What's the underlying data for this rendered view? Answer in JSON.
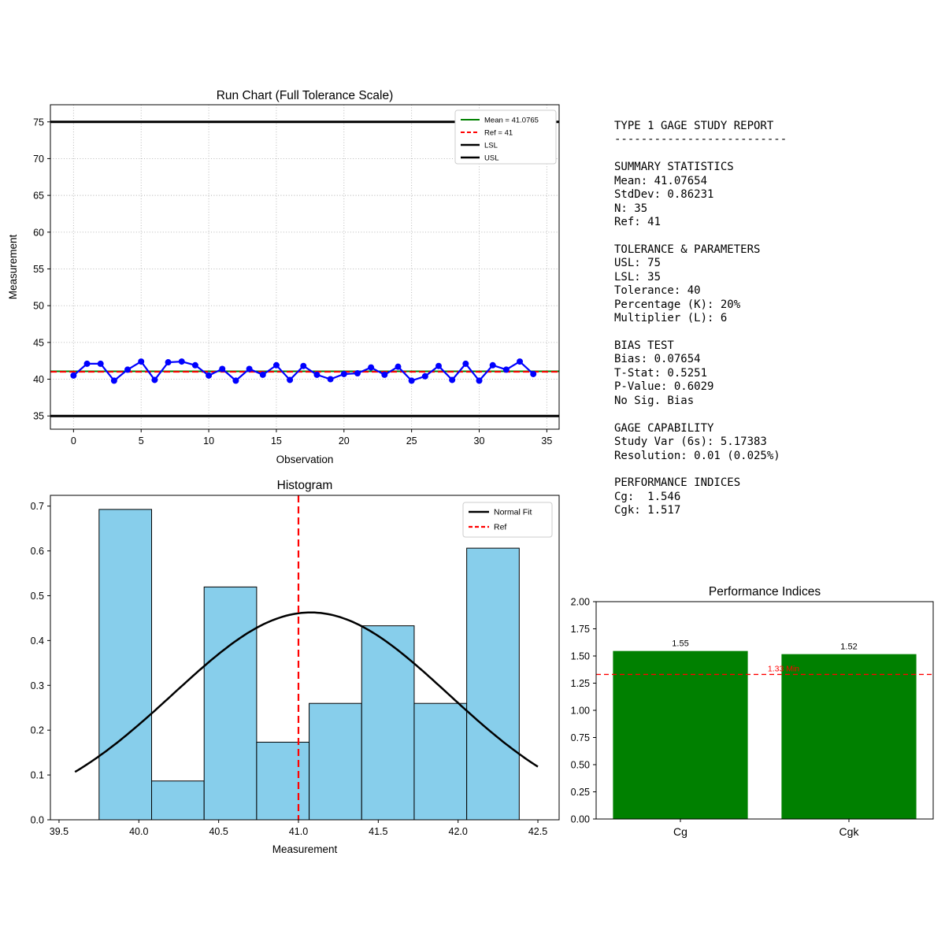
{
  "report": {
    "title": "TYPE 1 GAGE STUDY REPORT",
    "divider": "--------------------------",
    "sections": [
      {
        "heading": "SUMMARY STATISTICS",
        "lines": [
          "Mean: 41.07654",
          "StdDev: 0.86231",
          "N: 35",
          "Ref: 41"
        ]
      },
      {
        "heading": "TOLERANCE & PARAMETERS",
        "lines": [
          "USL: 75",
          "LSL: 35",
          "Tolerance: 40",
          "Percentage (K): 20%",
          "Multiplier (L): 6"
        ]
      },
      {
        "heading": "BIAS TEST",
        "lines": [
          "Bias: 0.07654",
          "T-Stat: 0.5251",
          "P-Value: 0.6029",
          "No Sig. Bias"
        ]
      },
      {
        "heading": "GAGE CAPABILITY",
        "lines": [
          "Study Var (6s): 5.17383",
          "Resolution: 0.01 (0.025%)"
        ]
      },
      {
        "heading": "PERFORMANCE INDICES",
        "lines": [
          "Cg:  1.546",
          "Cgk: 1.517"
        ]
      }
    ]
  },
  "chart_data": [
    {
      "id": "run_chart",
      "type": "line",
      "title": "Run Chart (Full Tolerance Scale)",
      "xlabel": "Observation",
      "ylabel": "Measurement",
      "xlim": [
        -1.71,
        35.91
      ],
      "ylim": [
        33.2,
        77.33
      ],
      "xticks": {
        "values": [
          0,
          5,
          10,
          15,
          20,
          25,
          30,
          35
        ],
        "labels": [
          "0",
          "5",
          "10",
          "15",
          "20",
          "25",
          "30",
          "35"
        ]
      },
      "yticks": {
        "values": [
          35,
          40,
          45,
          50,
          55,
          60,
          65,
          70,
          75
        ],
        "labels": [
          "35",
          "40",
          "45",
          "50",
          "55",
          "60",
          "65",
          "70",
          "75"
        ]
      },
      "grid": true,
      "series_color": "#0000ff",
      "values": [
        40.5,
        42.1,
        42.1,
        39.8,
        41.3,
        42.4,
        39.9,
        42.3,
        42.4,
        41.9,
        40.5,
        41.4,
        39.8,
        41.4,
        40.6,
        41.9,
        39.9,
        41.8,
        40.6,
        40.0,
        40.7,
        40.8,
        41.6,
        40.6,
        41.7,
        39.8,
        40.4,
        41.8,
        39.9,
        42.1,
        39.8,
        41.9,
        41.3,
        42.4,
        40.7
      ],
      "ref_lines": {
        "mean": {
          "value": 41.0765,
          "color": "#008000"
        },
        "ref": {
          "value": 41,
          "color": "#ff0000",
          "dashed": true
        },
        "lsl": {
          "value": 35,
          "color": "#000000"
        },
        "usl": {
          "value": 75,
          "color": "#000000"
        }
      },
      "legend": [
        {
          "label": "Mean = 41.0765",
          "color": "#008000",
          "dash": false,
          "width": 2
        },
        {
          "label": "Ref = 41",
          "color": "#ff0000",
          "dash": true,
          "width": 2
        },
        {
          "label": "LSL",
          "color": "#000000",
          "dash": false,
          "width": 2.5
        },
        {
          "label": "USL",
          "color": "#000000",
          "dash": false,
          "width": 2.5
        }
      ],
      "legend_position": "top-right"
    },
    {
      "id": "histogram",
      "type": "histogram",
      "title": "Histogram",
      "xlabel": "Measurement",
      "bin_edges": [
        39.751,
        40.08,
        40.409,
        40.738,
        41.067,
        41.396,
        41.725,
        42.054,
        42.383
      ],
      "densities": [
        0.6926,
        0.0866,
        0.5195,
        0.1732,
        0.2597,
        0.4329,
        0.2597,
        0.6061
      ],
      "counts": [
        8,
        1,
        6,
        2,
        3,
        5,
        3,
        7
      ],
      "bar_color": "#87CEEB",
      "bar_edge_color": "#000000",
      "normal_fit": {
        "mean": 41.07654,
        "std": 0.86231,
        "x_range": [
          39.6,
          42.51
        ],
        "color": "#000000"
      },
      "ref_line": {
        "value": 41,
        "color": "#ff0000",
        "dashed": true
      },
      "xlim": [
        39.446,
        42.633
      ],
      "ylim": [
        0,
        0.724
      ],
      "xticks": {
        "values": [
          39.5,
          40.0,
          40.5,
          41.0,
          41.5,
          42.0,
          42.5
        ],
        "labels": [
          "39.5",
          "40.0",
          "40.5",
          "41.0",
          "41.5",
          "42.0",
          "42.5"
        ]
      },
      "yticks": {
        "values": [
          0,
          0.1,
          0.2,
          0.3,
          0.4,
          0.5,
          0.6,
          0.7
        ],
        "labels": [
          "0.0",
          "0.1",
          "0.2",
          "0.3",
          "0.4",
          "0.5",
          "0.6",
          "0.7"
        ]
      },
      "legend": [
        {
          "label": "Normal Fit",
          "color": "#000000",
          "dash": false,
          "width": 2.5
        },
        {
          "label": "Ref",
          "color": "#ff0000",
          "dash": true,
          "width": 2.2
        }
      ],
      "legend_position": "top-right"
    },
    {
      "id": "performance_indices",
      "type": "bar",
      "title": "Performance Indices",
      "categories": [
        "Cg",
        "Cgk"
      ],
      "values": [
        1.546,
        1.517
      ],
      "bar_labels": [
        "1.55",
        "1.52"
      ],
      "bar_color": "#008000",
      "threshold": {
        "value": 1.33,
        "label": "1.33 Min",
        "color": "#ff0000",
        "dashed": true
      },
      "xlim": [
        -0.5,
        1.5
      ],
      "ylim": [
        0,
        2
      ],
      "yticks": {
        "values": [
          0,
          0.25,
          0.5,
          0.75,
          1.0,
          1.25,
          1.5,
          1.75,
          2.0
        ],
        "labels": [
          "0.00",
          "0.25",
          "0.50",
          "0.75",
          "1.00",
          "1.25",
          "1.50",
          "1.75",
          "2.00"
        ]
      }
    }
  ]
}
